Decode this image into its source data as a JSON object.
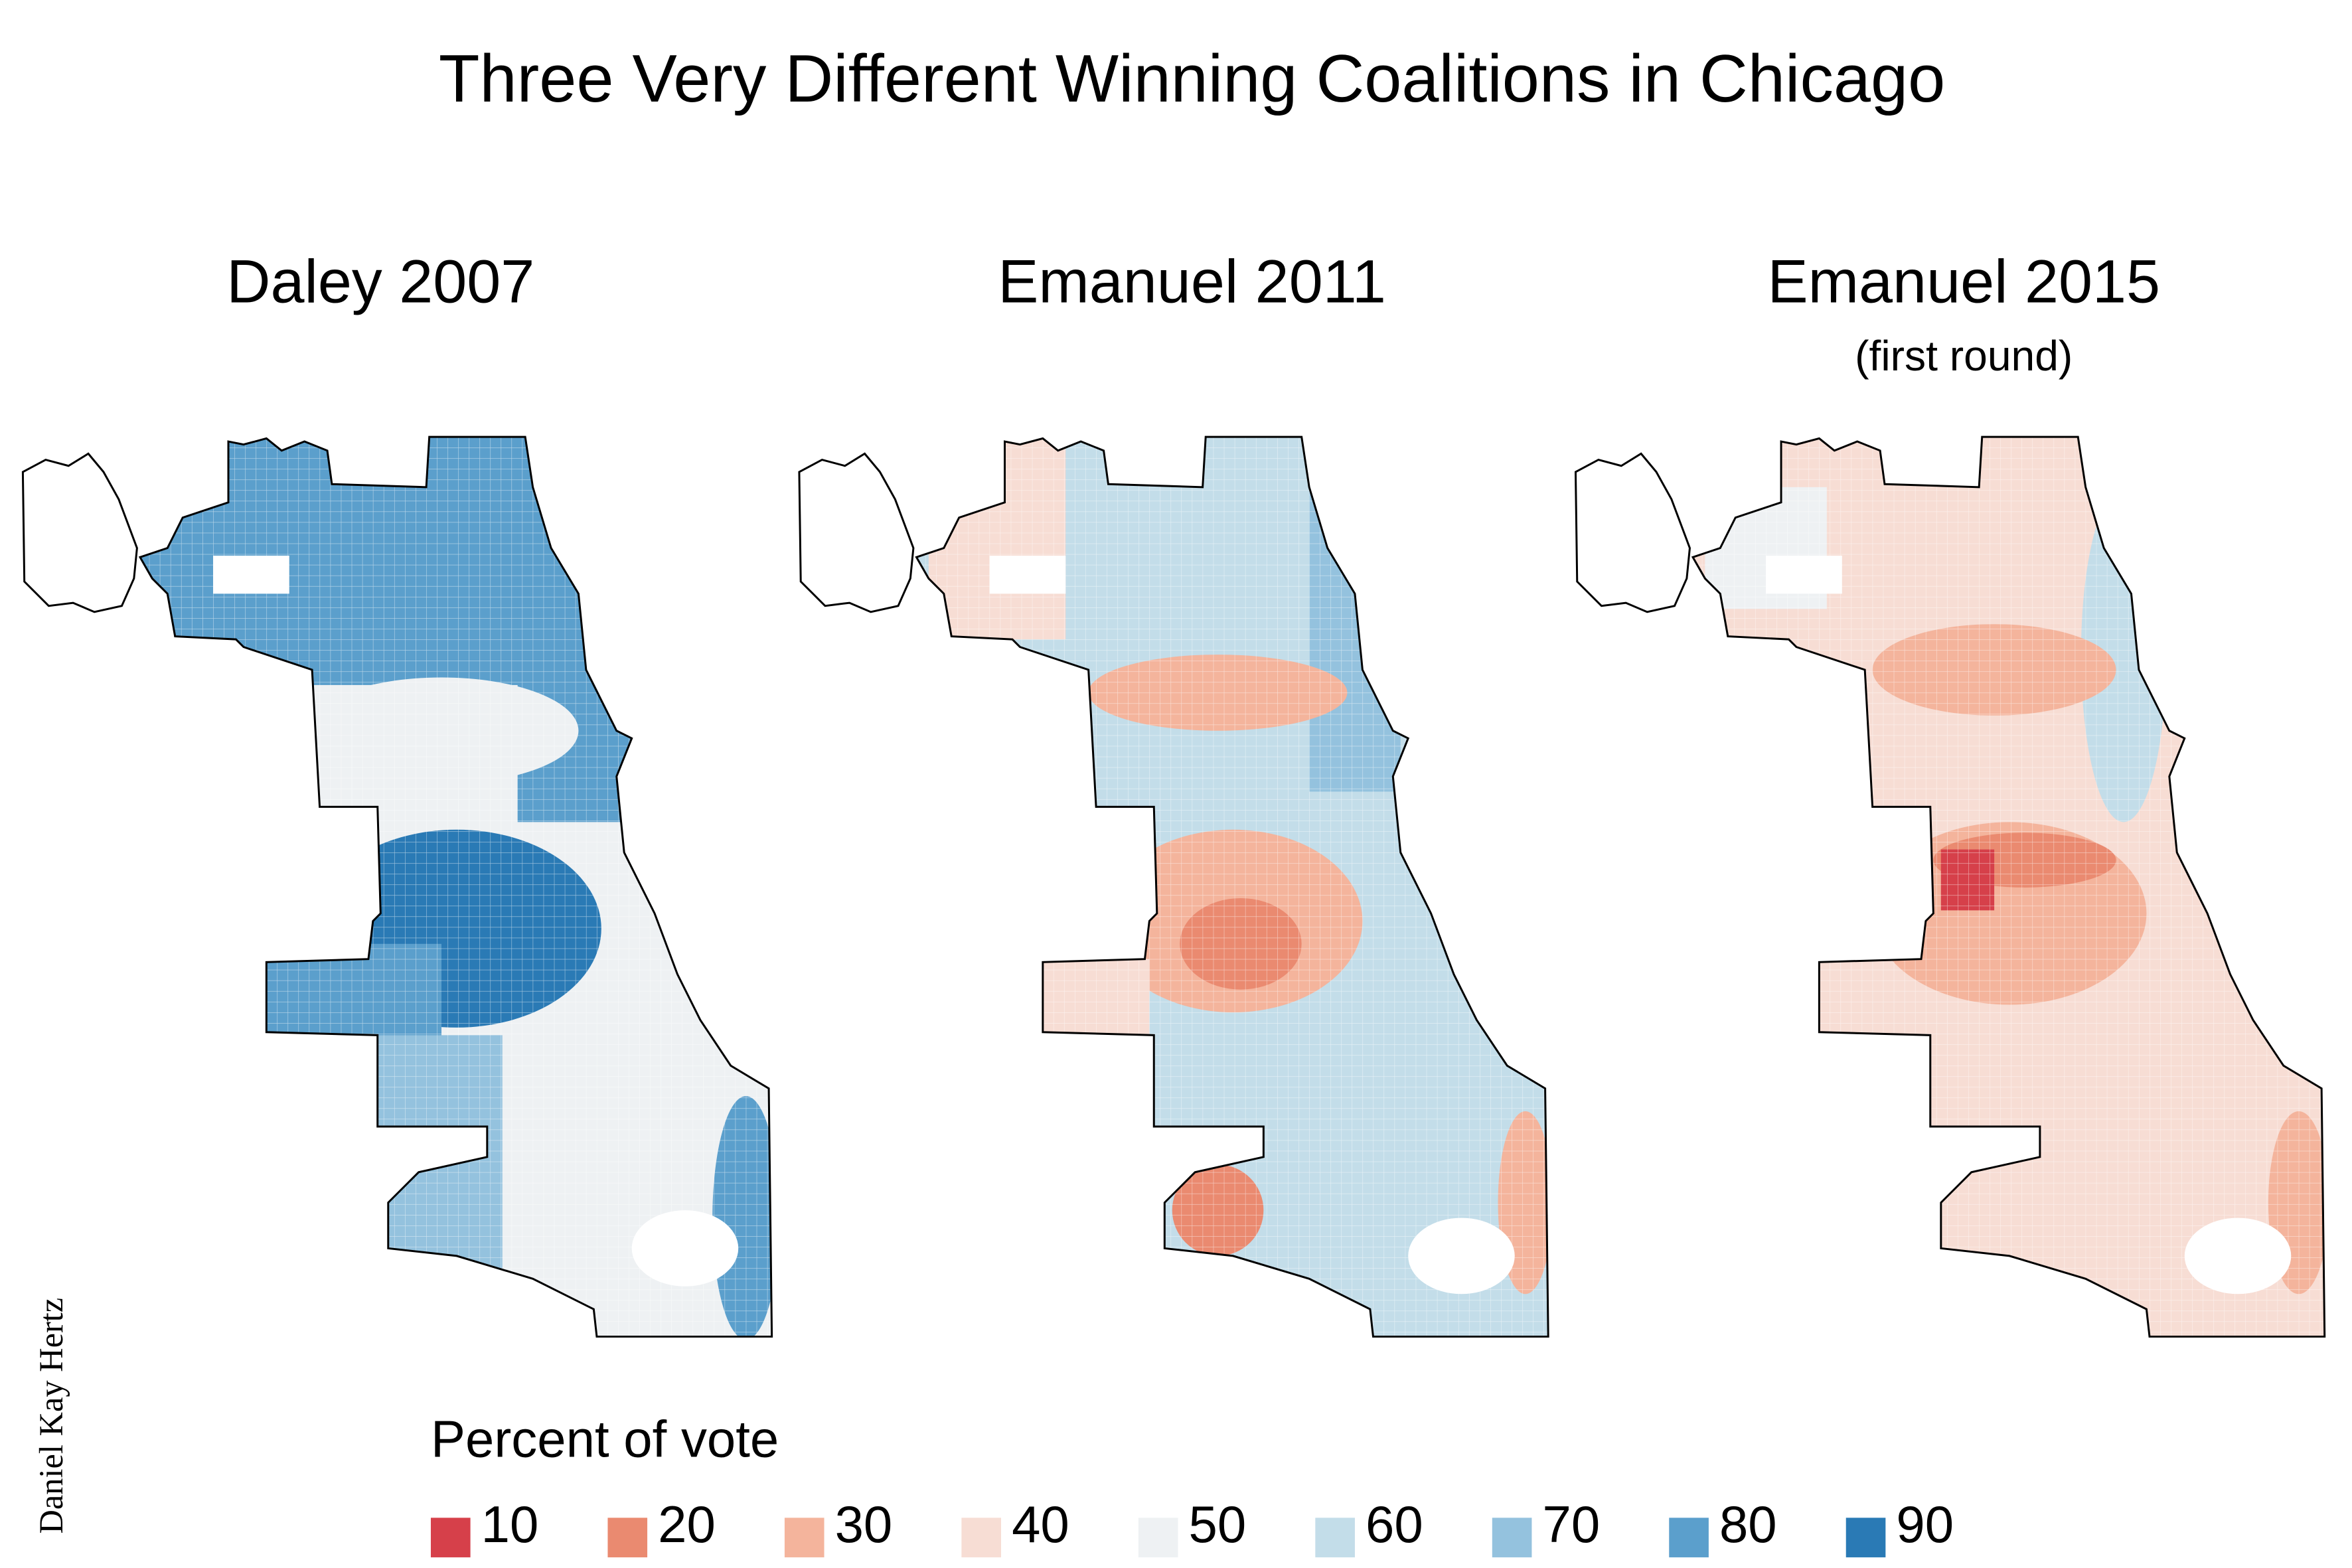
{
  "title": "Three Very Different Winning Coalitions in Chicago",
  "maps": [
    {
      "title": "Daley 2007"
    },
    {
      "title": "Emanuel 2011"
    },
    {
      "title": "Emanuel 2015",
      "subtitle": "(first round)"
    }
  ],
  "legend": {
    "title": "Percent of vote",
    "items": [
      {
        "value": 10,
        "color": "#d6404a"
      },
      {
        "value": 20,
        "color": "#ea8a70"
      },
      {
        "value": 30,
        "color": "#f4b49c"
      },
      {
        "value": 40,
        "color": "#f7ddd4"
      },
      {
        "value": 50,
        "color": "#eef1f3"
      },
      {
        "value": 60,
        "color": "#c3dde9"
      },
      {
        "value": 70,
        "color": "#94c2de"
      },
      {
        "value": 80,
        "color": "#5b9fcc"
      },
      {
        "value": 90,
        "color": "#2a7ab5"
      }
    ]
  },
  "credit": "Daniel Kay Hertz"
}
